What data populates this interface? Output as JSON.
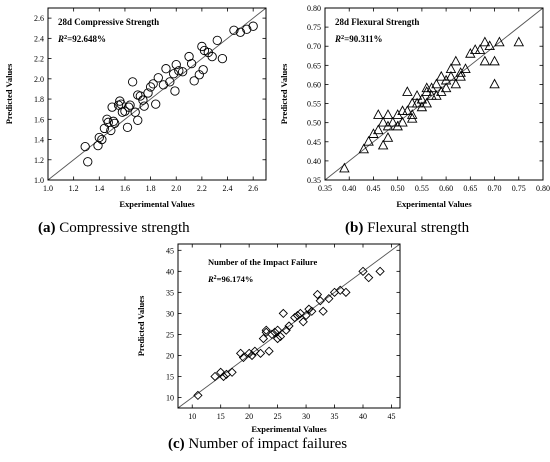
{
  "figure": {
    "captions": [
      {
        "tag": "(a)",
        "text": "Compressive strength"
      },
      {
        "tag": "(b)",
        "text": "Flexural strength"
      },
      {
        "tag": "(c)",
        "text": "Number of impact failures"
      }
    ]
  },
  "chart_data": [
    {
      "type": "scatter",
      "title": "28d Compressive Strength",
      "r2_label": "R",
      "r2_sup": "2",
      "r2_value": "=92.648%",
      "xlabel": "Experimental Values",
      "ylabel": "Predicted Values",
      "xlim": [
        1.0,
        2.7
      ],
      "ylim": [
        1.0,
        2.7
      ],
      "xticks": [
        1.0,
        1.2,
        1.4,
        1.6,
        1.8,
        2.0,
        2.2,
        2.4,
        2.6
      ],
      "yticks": [
        1.0,
        1.2,
        1.4,
        1.6,
        1.8,
        2.0,
        2.2,
        2.4,
        2.6
      ],
      "tick_decimals": 1,
      "marker": "circle",
      "reference_line": "y=x",
      "x": [
        1.29,
        1.31,
        1.39,
        1.4,
        1.42,
        1.44,
        1.46,
        1.47,
        1.49,
        1.5,
        1.51,
        1.52,
        1.55,
        1.57,
        1.58,
        1.6,
        1.62,
        1.63,
        1.64,
        1.66,
        1.68,
        1.7,
        1.72,
        1.74,
        1.75,
        1.78,
        1.8,
        1.82,
        1.84,
        1.86,
        1.9,
        1.92,
        1.95,
        1.98,
        2.0,
        2.02,
        2.05,
        2.1,
        2.14,
        2.18,
        2.2,
        2.22,
        2.25,
        2.28,
        2.32,
        2.36,
        2.45,
        2.5,
        2.55,
        2.6,
        1.56,
        1.7,
        1.99,
        2.21,
        2.12
      ],
      "y": [
        1.33,
        1.18,
        1.34,
        1.42,
        1.4,
        1.51,
        1.6,
        1.57,
        1.49,
        1.72,
        1.58,
        1.56,
        1.74,
        1.75,
        1.67,
        1.68,
        1.52,
        1.72,
        1.74,
        1.97,
        1.67,
        1.84,
        1.83,
        1.79,
        1.73,
        1.86,
        1.92,
        1.95,
        1.75,
        2.01,
        1.94,
        2.1,
        1.97,
        2.05,
        2.14,
        2.08,
        2.07,
        2.22,
        1.98,
        2.04,
        2.32,
        2.28,
        2.26,
        2.22,
        2.38,
        2.2,
        2.48,
        2.46,
        2.49,
        2.52,
        1.78,
        1.59,
        1.88,
        2.09,
        2.15
      ]
    },
    {
      "type": "scatter",
      "title": "28d Flexural Strength",
      "r2_label": "R",
      "r2_sup": "2",
      "r2_value": "=90.311%",
      "xlabel": "Experimental Values",
      "ylabel": "Predicted Values",
      "xlim": [
        0.35,
        0.8
      ],
      "ylim": [
        0.35,
        0.8
      ],
      "xticks": [
        0.35,
        0.4,
        0.45,
        0.5,
        0.55,
        0.6,
        0.65,
        0.7,
        0.75,
        0.8
      ],
      "yticks": [
        0.35,
        0.4,
        0.45,
        0.5,
        0.55,
        0.6,
        0.65,
        0.7,
        0.75,
        0.8
      ],
      "tick_decimals": 2,
      "marker": "triangle",
      "reference_line": "y=x",
      "x": [
        0.39,
        0.43,
        0.44,
        0.45,
        0.46,
        0.46,
        0.47,
        0.47,
        0.48,
        0.48,
        0.49,
        0.5,
        0.5,
        0.51,
        0.51,
        0.52,
        0.52,
        0.53,
        0.53,
        0.54,
        0.54,
        0.55,
        0.55,
        0.56,
        0.56,
        0.57,
        0.57,
        0.58,
        0.58,
        0.59,
        0.59,
        0.6,
        0.6,
        0.61,
        0.61,
        0.62,
        0.62,
        0.63,
        0.64,
        0.65,
        0.66,
        0.67,
        0.68,
        0.68,
        0.69,
        0.7,
        0.7,
        0.71,
        0.75,
        0.48,
        0.53,
        0.56,
        0.63
      ],
      "y": [
        0.38,
        0.43,
        0.45,
        0.47,
        0.52,
        0.48,
        0.5,
        0.44,
        0.49,
        0.46,
        0.5,
        0.52,
        0.49,
        0.53,
        0.5,
        0.53,
        0.58,
        0.55,
        0.52,
        0.57,
        0.55,
        0.56,
        0.54,
        0.58,
        0.55,
        0.57,
        0.59,
        0.6,
        0.57,
        0.62,
        0.58,
        0.59,
        0.61,
        0.62,
        0.64,
        0.6,
        0.66,
        0.62,
        0.64,
        0.68,
        0.69,
        0.69,
        0.71,
        0.66,
        0.7,
        0.6,
        0.66,
        0.71,
        0.71,
        0.52,
        0.51,
        0.59,
        0.63
      ]
    },
    {
      "type": "scatter",
      "title": "Number of the Impact Failure",
      "r2_label": "R",
      "r2_sup": "2",
      "r2_value": "=96.174%",
      "xlabel": "Experimental Values",
      "ylabel": "Predicted Values",
      "xlim": [
        7.5,
        46.5
      ],
      "ylim": [
        7.5,
        46.5
      ],
      "xticks": [
        10,
        15,
        20,
        25,
        30,
        35,
        40,
        45
      ],
      "yticks": [
        10,
        15,
        20,
        25,
        30,
        35,
        40,
        45
      ],
      "tick_decimals": 0,
      "marker": "diamond",
      "reference_line": "y=x",
      "x": [
        11,
        14,
        15,
        15.5,
        16,
        17,
        18.5,
        19,
        20,
        20.5,
        21,
        22,
        22.5,
        23,
        23.5,
        24,
        24.5,
        25,
        25.5,
        26,
        26.5,
        27,
        28,
        28.5,
        29,
        30,
        30.5,
        31,
        32,
        32.5,
        33,
        34,
        35,
        36,
        37,
        40,
        41,
        43,
        25,
        23,
        29.5
      ],
      "y": [
        10.5,
        15,
        16,
        15,
        15.5,
        16,
        20.5,
        19.5,
        20.5,
        20,
        21,
        20.5,
        24,
        26,
        21,
        25,
        25.5,
        26,
        24.5,
        30,
        26,
        27,
        29,
        29.5,
        30,
        29.5,
        31,
        30.5,
        34.5,
        33,
        30.5,
        33.5,
        35,
        35.5,
        35,
        40,
        38.5,
        40,
        24,
        25.5,
        28
      ]
    }
  ]
}
